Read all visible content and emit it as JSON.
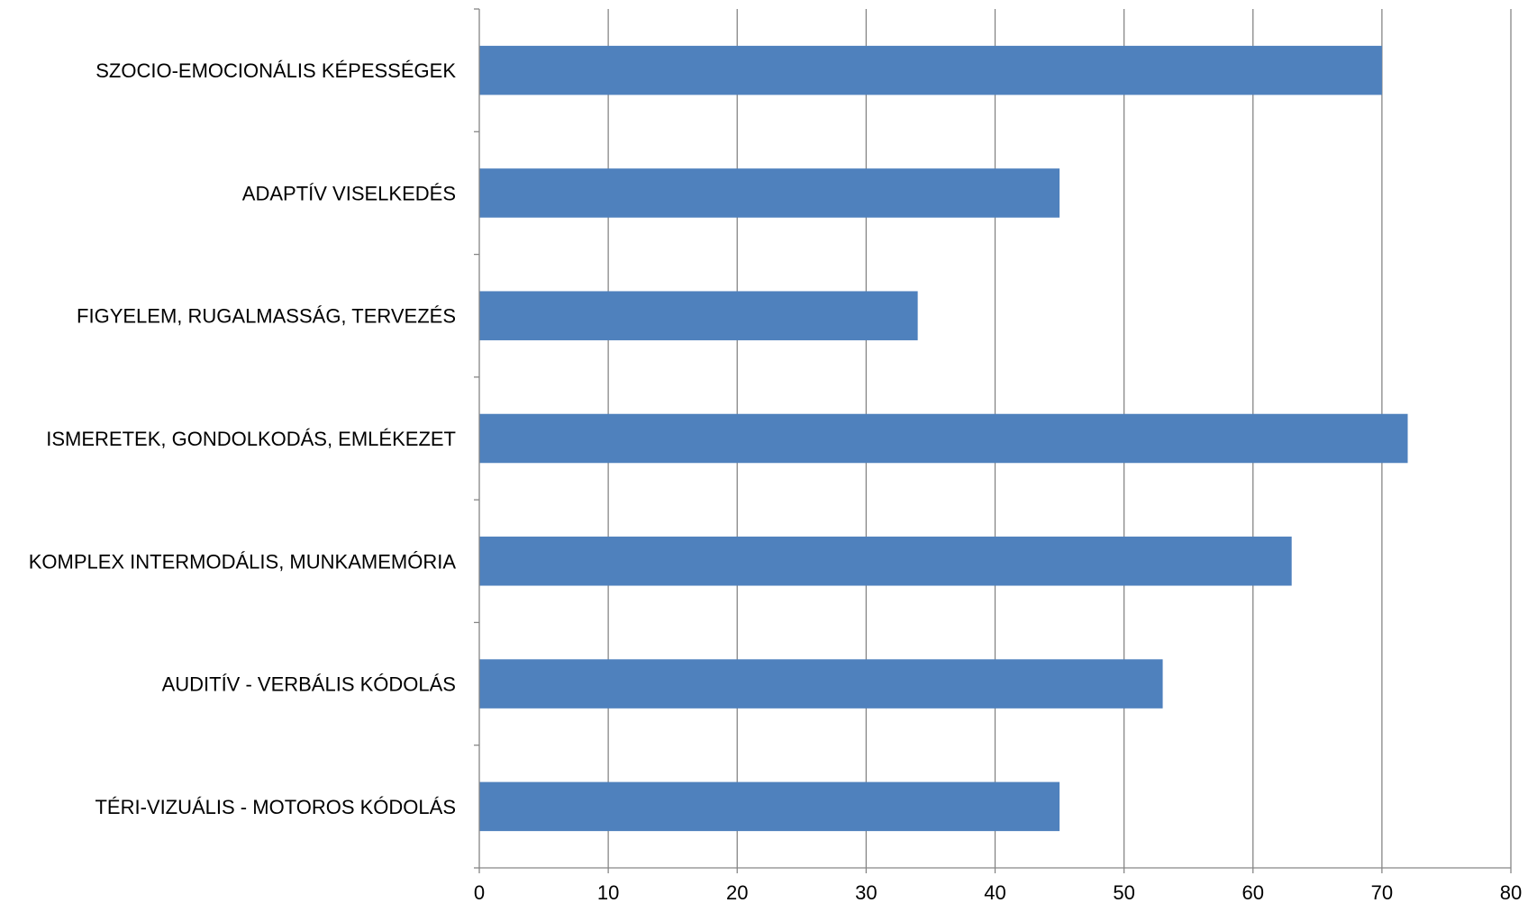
{
  "chart_data": {
    "type": "bar",
    "orientation": "horizontal",
    "title": "",
    "xlabel": "",
    "ylabel": "",
    "categories": [
      "SZOCIO-EMOCIONÁLIS KÉPESSÉGEK",
      "ADAPTÍV VISELKEDÉS",
      "FIGYELEM, RUGALMASSÁG, TERVEZÉS",
      "ISMERETEK, GONDOLKODÁS, EMLÉKEZET",
      "KOMPLEX  INTERMODÁLIS, MUNKAMEMÓRIA",
      "AUDITÍV - VERBÁLIS KÓDOLÁS",
      "TÉRI-VIZUÁLIS - MOTOROS KÓDOLÁS"
    ],
    "values": [
      70,
      45,
      34,
      72,
      63,
      53,
      45
    ],
    "xlim": [
      0,
      80
    ],
    "xticks": [
      "0",
      "10",
      "20",
      "30",
      "40",
      "50",
      "60",
      "70",
      "80"
    ],
    "grid": "vertical",
    "legend": "none",
    "colors": {
      "bar": "#4F81BD",
      "gridline": "#868686",
      "axis": "#868686"
    }
  }
}
